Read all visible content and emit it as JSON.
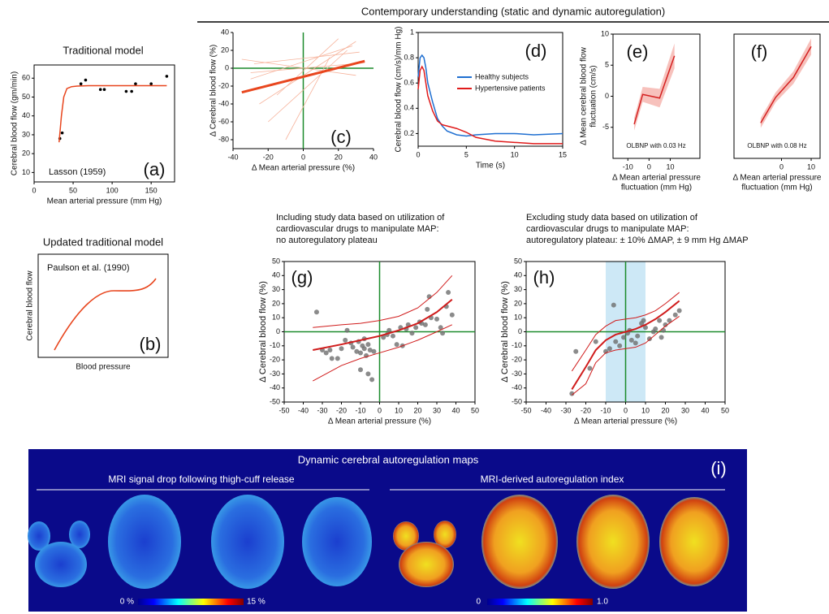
{
  "header": "Contemporary understanding (static and dynamic autoregulation)",
  "chart_data": [
    {
      "type": "scatter",
      "title": "Traditional model",
      "xlabel": "Mean arterial pressure (mm Hg)",
      "ylabel": "Cerebral blood flow (gm/min)",
      "annotation": "Lasson (1959)",
      "panel_label": "(a)",
      "xlim": [
        0,
        180
      ],
      "ylim": [
        5,
        67
      ],
      "xticks": [
        0,
        50,
        100,
        150
      ],
      "yticks": [
        10,
        20,
        30,
        40,
        50,
        60
      ],
      "series": [
        {
          "style": "points",
          "color": "#000000",
          "x": [
            33,
            36,
            60,
            66,
            85,
            90,
            118,
            125,
            130,
            150,
            170
          ],
          "values": [
            28,
            31,
            57,
            59,
            54,
            54,
            53,
            53,
            57,
            57,
            61
          ]
        },
        {
          "style": "line",
          "color": "#e8461e",
          "line_width": 1.5,
          "x": [
            32,
            35,
            38,
            42,
            48,
            55,
            70,
            100,
            130,
            170
          ],
          "values": [
            26,
            40,
            50,
            54.5,
            55.5,
            55.8,
            56,
            56,
            56,
            56
          ]
        }
      ]
    },
    {
      "type": "schematic",
      "title": "Updated traditional model",
      "xlabel": "Blood pressure",
      "ylabel": "Cerebral blood flow",
      "annotation": "Paulson et al. (1990)",
      "panel_label": "(b)"
    },
    {
      "type": "line",
      "xlabel": "Δ Mean arterial pressure (%)",
      "ylabel": "Δ Cerebral blood flow (%)",
      "panel_label": "(c)",
      "xlim": [
        -40,
        40
      ],
      "ylim": [
        -90,
        40
      ],
      "xticks": [
        -40,
        -20,
        0,
        20,
        40
      ],
      "yticks": [
        -80,
        -60,
        -40,
        -20,
        0,
        20,
        40
      ],
      "zero_lines": "#1a8a2a",
      "frame": false,
      "series": [
        {
          "style": "line",
          "color": "#f6b39c",
          "line_width": 0.8,
          "x": [
            -30,
            28
          ],
          "values": [
            -12,
            25
          ]
        },
        {
          "style": "line",
          "color": "#f6b39c",
          "line_width": 0.8,
          "x": [
            -25,
            30
          ],
          "values": [
            -40,
            30
          ]
        },
        {
          "style": "line",
          "color": "#f6b39c",
          "line_width": 0.8,
          "x": [
            -35,
            30
          ],
          "values": [
            10,
            -8
          ]
        },
        {
          "style": "line",
          "color": "#f6b39c",
          "line_width": 0.8,
          "x": [
            -20,
            25
          ],
          "values": [
            -60,
            20
          ]
        },
        {
          "style": "line",
          "color": "#f6b39c",
          "line_width": 0.8,
          "x": [
            -30,
            35
          ],
          "values": [
            -5,
            6
          ]
        },
        {
          "style": "line",
          "color": "#f6b39c",
          "line_width": 0.8,
          "x": [
            -15,
            20
          ],
          "values": [
            -30,
            33
          ]
        },
        {
          "style": "line",
          "color": "#f6b39c",
          "line_width": 0.8,
          "x": [
            -28,
            32
          ],
          "values": [
            5,
            18
          ]
        },
        {
          "style": "line",
          "color": "#f6b39c",
          "line_width": 0.8,
          "x": [
            -10,
            15
          ],
          "values": [
            -80,
            12
          ]
        },
        {
          "style": "line",
          "color": "#e8461e",
          "line_width": 3,
          "x": [
            -35,
            35
          ],
          "values": [
            -27,
            8
          ]
        }
      ]
    },
    {
      "type": "line",
      "xlabel": "Time (s)",
      "ylabel": "Cerebral blood flow (cm/s)/mm Hg)",
      "panel_label": "(d)",
      "xlim": [
        0,
        15
      ],
      "ylim": [
        0.1,
        1
      ],
      "xticks": [
        0,
        5,
        10,
        15
      ],
      "yticks": [
        0.2,
        0.4,
        0.6,
        0.8,
        1
      ],
      "series": [
        {
          "name": "Healthy subjects",
          "style": "line",
          "color": "#1f6fd1",
          "line_width": 1.5,
          "x": [
            0,
            0.2,
            0.4,
            0.6,
            0.8,
            1,
            1.5,
            2,
            2.5,
            3,
            4,
            5,
            6,
            8,
            10,
            12,
            15
          ],
          "values": [
            0.65,
            0.8,
            0.82,
            0.8,
            0.72,
            0.6,
            0.45,
            0.32,
            0.26,
            0.22,
            0.19,
            0.18,
            0.19,
            0.2,
            0.2,
            0.19,
            0.2
          ]
        },
        {
          "name": "Hypertensive patients",
          "style": "line",
          "color": "#e01b1b",
          "line_width": 1.5,
          "x": [
            0,
            0.2,
            0.4,
            0.6,
            0.8,
            1,
            1.5,
            2,
            2.5,
            3,
            4,
            5,
            6,
            8,
            10,
            12,
            15
          ],
          "values": [
            0.55,
            0.7,
            0.73,
            0.7,
            0.6,
            0.5,
            0.38,
            0.3,
            0.27,
            0.26,
            0.24,
            0.21,
            0.17,
            0.14,
            0.13,
            0.12,
            0.12
          ]
        }
      ]
    },
    {
      "type": "line",
      "xlabel": [
        "Δ Mean arterial pressure",
        "fluctuation (mm Hg)"
      ],
      "ylabel": [
        "Δ Mean cerebral blood flow",
        "fluctuation (cm/s)"
      ],
      "annotation": "OLBNP with 0.03 Hz",
      "panel_label": "(e)",
      "xlim": [
        -17,
        24
      ],
      "ylim": [
        -10,
        10
      ],
      "xticks": [
        -10,
        0,
        10
      ],
      "yticks": [
        -5,
        0,
        5,
        10
      ],
      "series": [
        {
          "style": "line",
          "color": "#d42020",
          "band_color": "#f4a6a0",
          "line_width": 1.5,
          "x": [
            -7,
            -3,
            5,
            12
          ],
          "values": [
            -4.5,
            0.3,
            -0.3,
            6.5
          ],
          "errors": [
            1,
            1.2,
            1.5,
            2
          ]
        }
      ]
    },
    {
      "type": "line",
      "xlabel": [
        "Δ Mean arterial pressure",
        "fluctuation (mm Hg)"
      ],
      "annotation": "OLBNP with 0.08 Hz",
      "panel_label": "(f)",
      "xlim": [
        -16,
        13
      ],
      "ylim": [
        -10,
        10
      ],
      "xticks": [
        0,
        10
      ],
      "yticks": [],
      "series": [
        {
          "style": "line",
          "color": "#d42020",
          "band_color": "#f4a6a0",
          "line_width": 1.5,
          "x": [
            -7,
            -2,
            4,
            10
          ],
          "values": [
            -4.3,
            -0.2,
            3,
            8
          ],
          "errors": [
            0.8,
            0.8,
            1,
            1.3
          ]
        }
      ]
    },
    {
      "type": "scatter",
      "note": [
        "Including study data based on utilization of",
        "cardiovascular drugs to manipulate MAP:",
        "no autoregulatory plateau"
      ],
      "xlabel": "Δ Mean arterial pressure (%)",
      "ylabel": "Δ Cerebral blood flow (%)",
      "panel_label": "(g)",
      "xlim": [
        -50,
        50
      ],
      "ylim": [
        -50,
        50
      ],
      "xticks": [
        -50,
        -40,
        -30,
        -20,
        -10,
        0,
        10,
        20,
        30,
        40,
        50
      ],
      "yticks": [
        -50,
        -40,
        -30,
        -20,
        -10,
        0,
        10,
        20,
        30,
        40,
        50
      ],
      "zero_lines": "#1a8a2a",
      "series": [
        {
          "style": "points",
          "color": "#6e6e6e",
          "x": [
            -33,
            -30,
            -28,
            -26,
            -25,
            -22,
            -20,
            -18,
            -17,
            -15,
            -14,
            -12,
            -11,
            -10,
            -10,
            -9,
            -8,
            -8,
            -7,
            -6,
            -6,
            -5,
            -4,
            -3,
            2,
            4,
            5,
            7,
            9,
            11,
            12,
            14,
            15,
            17,
            19,
            21,
            22,
            24,
            25,
            26,
            27,
            30,
            32,
            33,
            35,
            36,
            38
          ],
          "values": [
            14,
            -13,
            -15,
            -13,
            -19,
            -19,
            -12,
            -6,
            1,
            -8,
            -11,
            -14,
            -7,
            -15,
            -27,
            -10,
            -5,
            -12,
            -17,
            -9,
            -30,
            -13,
            -34,
            -14,
            -4,
            -2,
            1,
            -3,
            -9,
            3,
            -10,
            2,
            5,
            -1,
            3,
            7,
            6,
            5,
            16,
            25,
            10,
            9,
            3,
            -1,
            18,
            28,
            12
          ]
        },
        {
          "style": "line",
          "color": "#d01c1c",
          "line_width": 2,
          "x": [
            -35,
            -20,
            -10,
            0,
            10,
            20,
            30,
            38
          ],
          "values": [
            -13,
            -9,
            -6,
            -3,
            1,
            6,
            14,
            23
          ]
        },
        {
          "style": "line",
          "color": "#d01c1c",
          "line_width": 1,
          "x": [
            -35,
            -20,
            -10,
            0,
            10,
            20,
            30,
            38
          ],
          "values": [
            3,
            5,
            6,
            8,
            11,
            17,
            28,
            40
          ]
        },
        {
          "style": "line",
          "color": "#d01c1c",
          "line_width": 1,
          "x": [
            -35,
            -20,
            -10,
            0,
            10,
            20,
            30,
            38
          ],
          "values": [
            -35,
            -24,
            -19,
            -15,
            -11,
            -6,
            0,
            5
          ]
        }
      ]
    },
    {
      "type": "scatter",
      "note": [
        "Excluding study data based on utilization of",
        "cardiovascular drugs to manipulate MAP:",
        "autoregulatory plateau: ± 10% ΔMAP, ± 9 mm Hg ΔMAP"
      ],
      "xlabel": "Δ Mean arterial pressure (%)",
      "ylabel": "Δ Cerebral blood flow (%)",
      "panel_label": "(h)",
      "xlim": [
        -50,
        50
      ],
      "ylim": [
        -50,
        50
      ],
      "xticks": [
        -50,
        -40,
        -30,
        -20,
        -10,
        0,
        10,
        20,
        30,
        40,
        50
      ],
      "yticks": [
        -50,
        -40,
        -30,
        -20,
        -10,
        0,
        10,
        20,
        30,
        40,
        50
      ],
      "zero_lines": "#1a8a2a",
      "x_band": [
        -10,
        10
      ],
      "x_band_color": "#cde8f6",
      "series": [
        {
          "style": "points",
          "color": "#6e6e6e",
          "x": [
            -27,
            -25,
            -18,
            -15,
            -10,
            -8,
            -6,
            -5,
            -3,
            -1,
            1,
            2,
            3,
            5,
            6,
            8,
            9,
            10,
            12,
            14,
            15,
            17,
            18,
            19,
            20,
            22,
            25,
            27
          ],
          "values": [
            -44,
            -14,
            -26,
            -7,
            -14,
            -12,
            19,
            -7,
            -10,
            -4,
            -1,
            1,
            -6,
            -8,
            -3,
            6,
            8,
            3,
            -5,
            0,
            2,
            8,
            -4,
            1,
            5,
            8,
            12,
            15
          ]
        },
        {
          "style": "line",
          "color": "#d01c1c",
          "line_width": 2,
          "x": [
            -27,
            -20,
            -15,
            -10,
            -5,
            0,
            5,
            10,
            15,
            20,
            27
          ],
          "values": [
            -41,
            -25,
            -13,
            -6,
            -2,
            0,
            2,
            5,
            9,
            14,
            22
          ]
        },
        {
          "style": "line",
          "color": "#d01c1c",
          "line_width": 1,
          "x": [
            -27,
            -20,
            -15,
            -10,
            -5,
            0,
            5,
            10,
            15,
            20,
            27
          ],
          "values": [
            -28,
            -13,
            -2,
            4,
            8,
            9,
            10,
            12,
            15,
            20,
            28
          ]
        },
        {
          "style": "line",
          "color": "#d01c1c",
          "line_width": 1,
          "x": [
            -27,
            -20,
            -15,
            -10,
            -5,
            0,
            5,
            10,
            15,
            20,
            27
          ],
          "values": [
            -45,
            -37,
            -22,
            -15,
            -13,
            -12,
            -11,
            -8,
            -2,
            4,
            11
          ]
        }
      ]
    }
  ],
  "maps": {
    "title": "Dynamic cerebral autoregulation maps",
    "panel_label": "(i)",
    "left": {
      "title": "MRI signal drop following thigh-cuff release",
      "scale_min": "0 %",
      "scale_max": "15 %"
    },
    "right": {
      "title": "MRI-derived autoregulation index",
      "scale_min": "0",
      "scale_max": "1.0"
    }
  }
}
